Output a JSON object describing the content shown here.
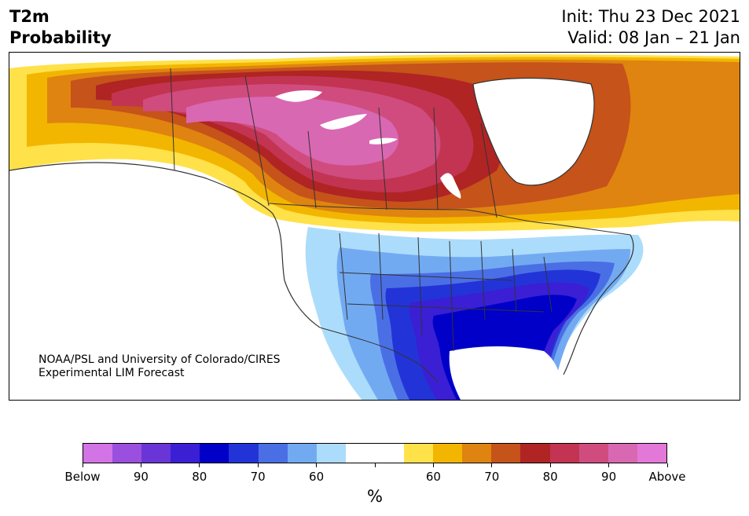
{
  "title": {
    "left_line1": "T2m",
    "left_line2": "Probability",
    "init": "Init: Thu 23 Dec 2021",
    "valid": "Valid: 08 Jan – 21 Jan"
  },
  "credit": {
    "line1": "NOAA/PSL and University of Colorado/CIRES",
    "line2": "Experimental LIM Forecast"
  },
  "colorbar": {
    "label": "%",
    "colors": [
      "#d374e6",
      "#9a4fdf",
      "#6a35d6",
      "#3a1fd4",
      "#0000c9",
      "#2234d8",
      "#4a6fe5",
      "#72aaf2",
      "#acdcfb",
      "#ffffff",
      "#ffffff",
      "#ffe14a",
      "#f2b600",
      "#df8410",
      "#c5531a",
      "#b02424",
      "#c23452",
      "#d04c7f",
      "#d968b3",
      "#e478d9"
    ],
    "tick_labels": [
      "Below",
      "90",
      "80",
      "70",
      "60",
      "",
      "60",
      "70",
      "80",
      "90",
      "Above"
    ]
  },
  "map": {
    "region": "North America",
    "projection": "Lambert conformal",
    "land_color": "#ffffff",
    "border_color": "#333333",
    "water_color": "#ffffff"
  }
}
